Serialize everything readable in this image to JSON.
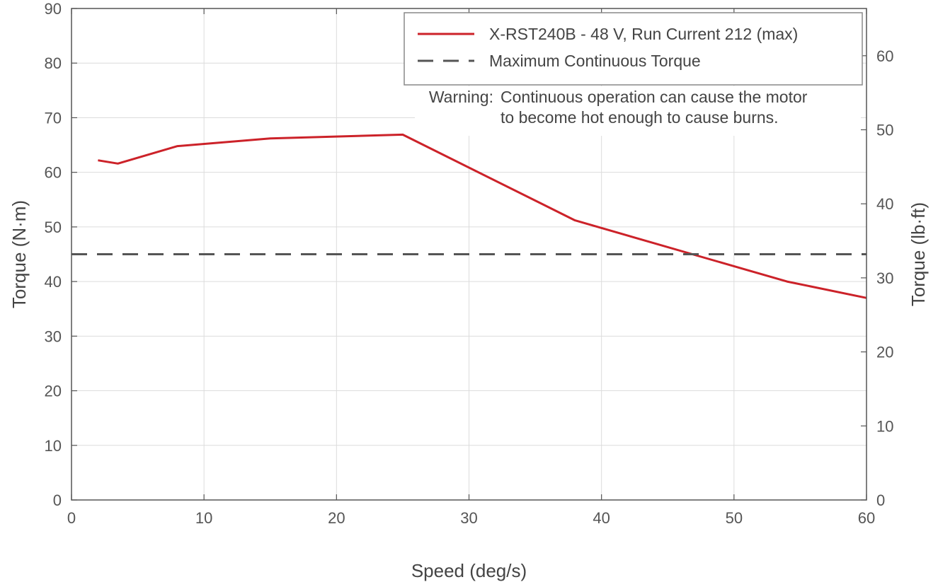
{
  "chart_data": {
    "type": "line",
    "xlabel": "Speed (deg/s)",
    "ylabel": "Torque (N·m)",
    "y2label": "Torque (lb·ft)",
    "xlim": [
      0,
      60
    ],
    "ylim": [
      0,
      90
    ],
    "y2lim": [
      0,
      66.38
    ],
    "xticks": [
      "0",
      "10",
      "20",
      "30",
      "40",
      "50",
      "60"
    ],
    "yticks": [
      "0",
      "10",
      "20",
      "30",
      "40",
      "50",
      "60",
      "70",
      "80",
      "90"
    ],
    "y2ticks": [
      "0",
      "10",
      "20",
      "30",
      "40",
      "50",
      "60"
    ],
    "grid": true,
    "legend_position": "top-right",
    "series": [
      {
        "name": "X-RST240B - 48 V, Run Current 212 (max)",
        "color": "#cc2229",
        "style": "solid",
        "x": [
          2,
          3.5,
          8,
          15,
          25,
          38,
          54,
          60
        ],
        "y": [
          62.2,
          61.6,
          64.8,
          66.2,
          66.9,
          51.2,
          40.0,
          37.0
        ]
      },
      {
        "name": "Maximum Continuous Torque",
        "color": "#555555",
        "style": "dashed",
        "x": [
          0,
          60
        ],
        "y": [
          45,
          45
        ]
      }
    ],
    "annotation": {
      "label": "Warning:",
      "lines": [
        "Continuous operation can cause the motor",
        "to become hot enough to cause burns."
      ]
    }
  }
}
